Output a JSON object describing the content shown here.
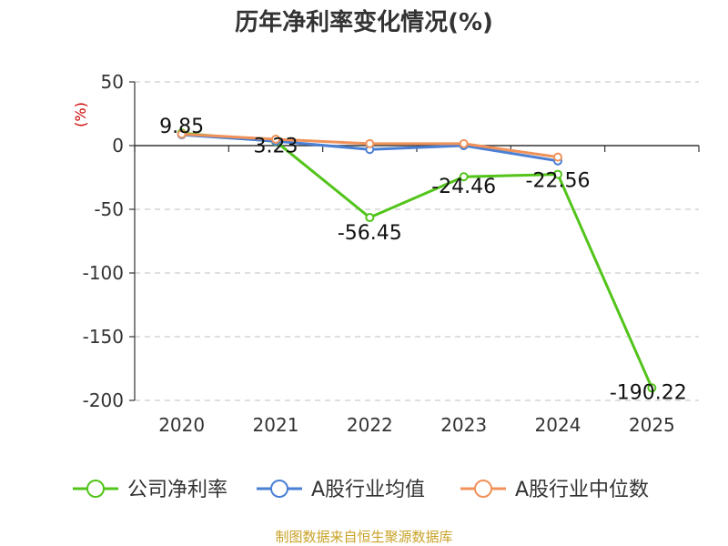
{
  "title": "历年净利率变化情况(%)",
  "source": "制图数据来自恒生聚源数据库",
  "chart_data": {
    "type": "line",
    "categories": [
      "2020",
      "2021",
      "2022",
      "2023",
      "2024",
      "2025"
    ],
    "ylabel": "(%)",
    "ylim": [
      -200,
      50
    ],
    "yticks": [
      50,
      0,
      -50,
      -100,
      -150,
      -200
    ],
    "grid": true,
    "legend_position": "bottom",
    "series": [
      {
        "name": "公司净利率",
        "color": "#52c41a",
        "values": [
          9.85,
          3.23,
          -56.45,
          -24.46,
          -22.56,
          -190.22
        ],
        "labels": [
          "9.85",
          "3.23",
          "-56.45",
          "-24.46",
          "-22.56",
          "-190.22"
        ]
      },
      {
        "name": "A股行业均值",
        "color": "#4a7fd4",
        "values": [
          8.5,
          3.5,
          -3.0,
          0.0,
          -12.0,
          null
        ]
      },
      {
        "name": "A股行业中位数",
        "color": "#f0925a",
        "values": [
          9.0,
          5.0,
          1.5,
          1.5,
          -9.0,
          null
        ]
      }
    ]
  }
}
